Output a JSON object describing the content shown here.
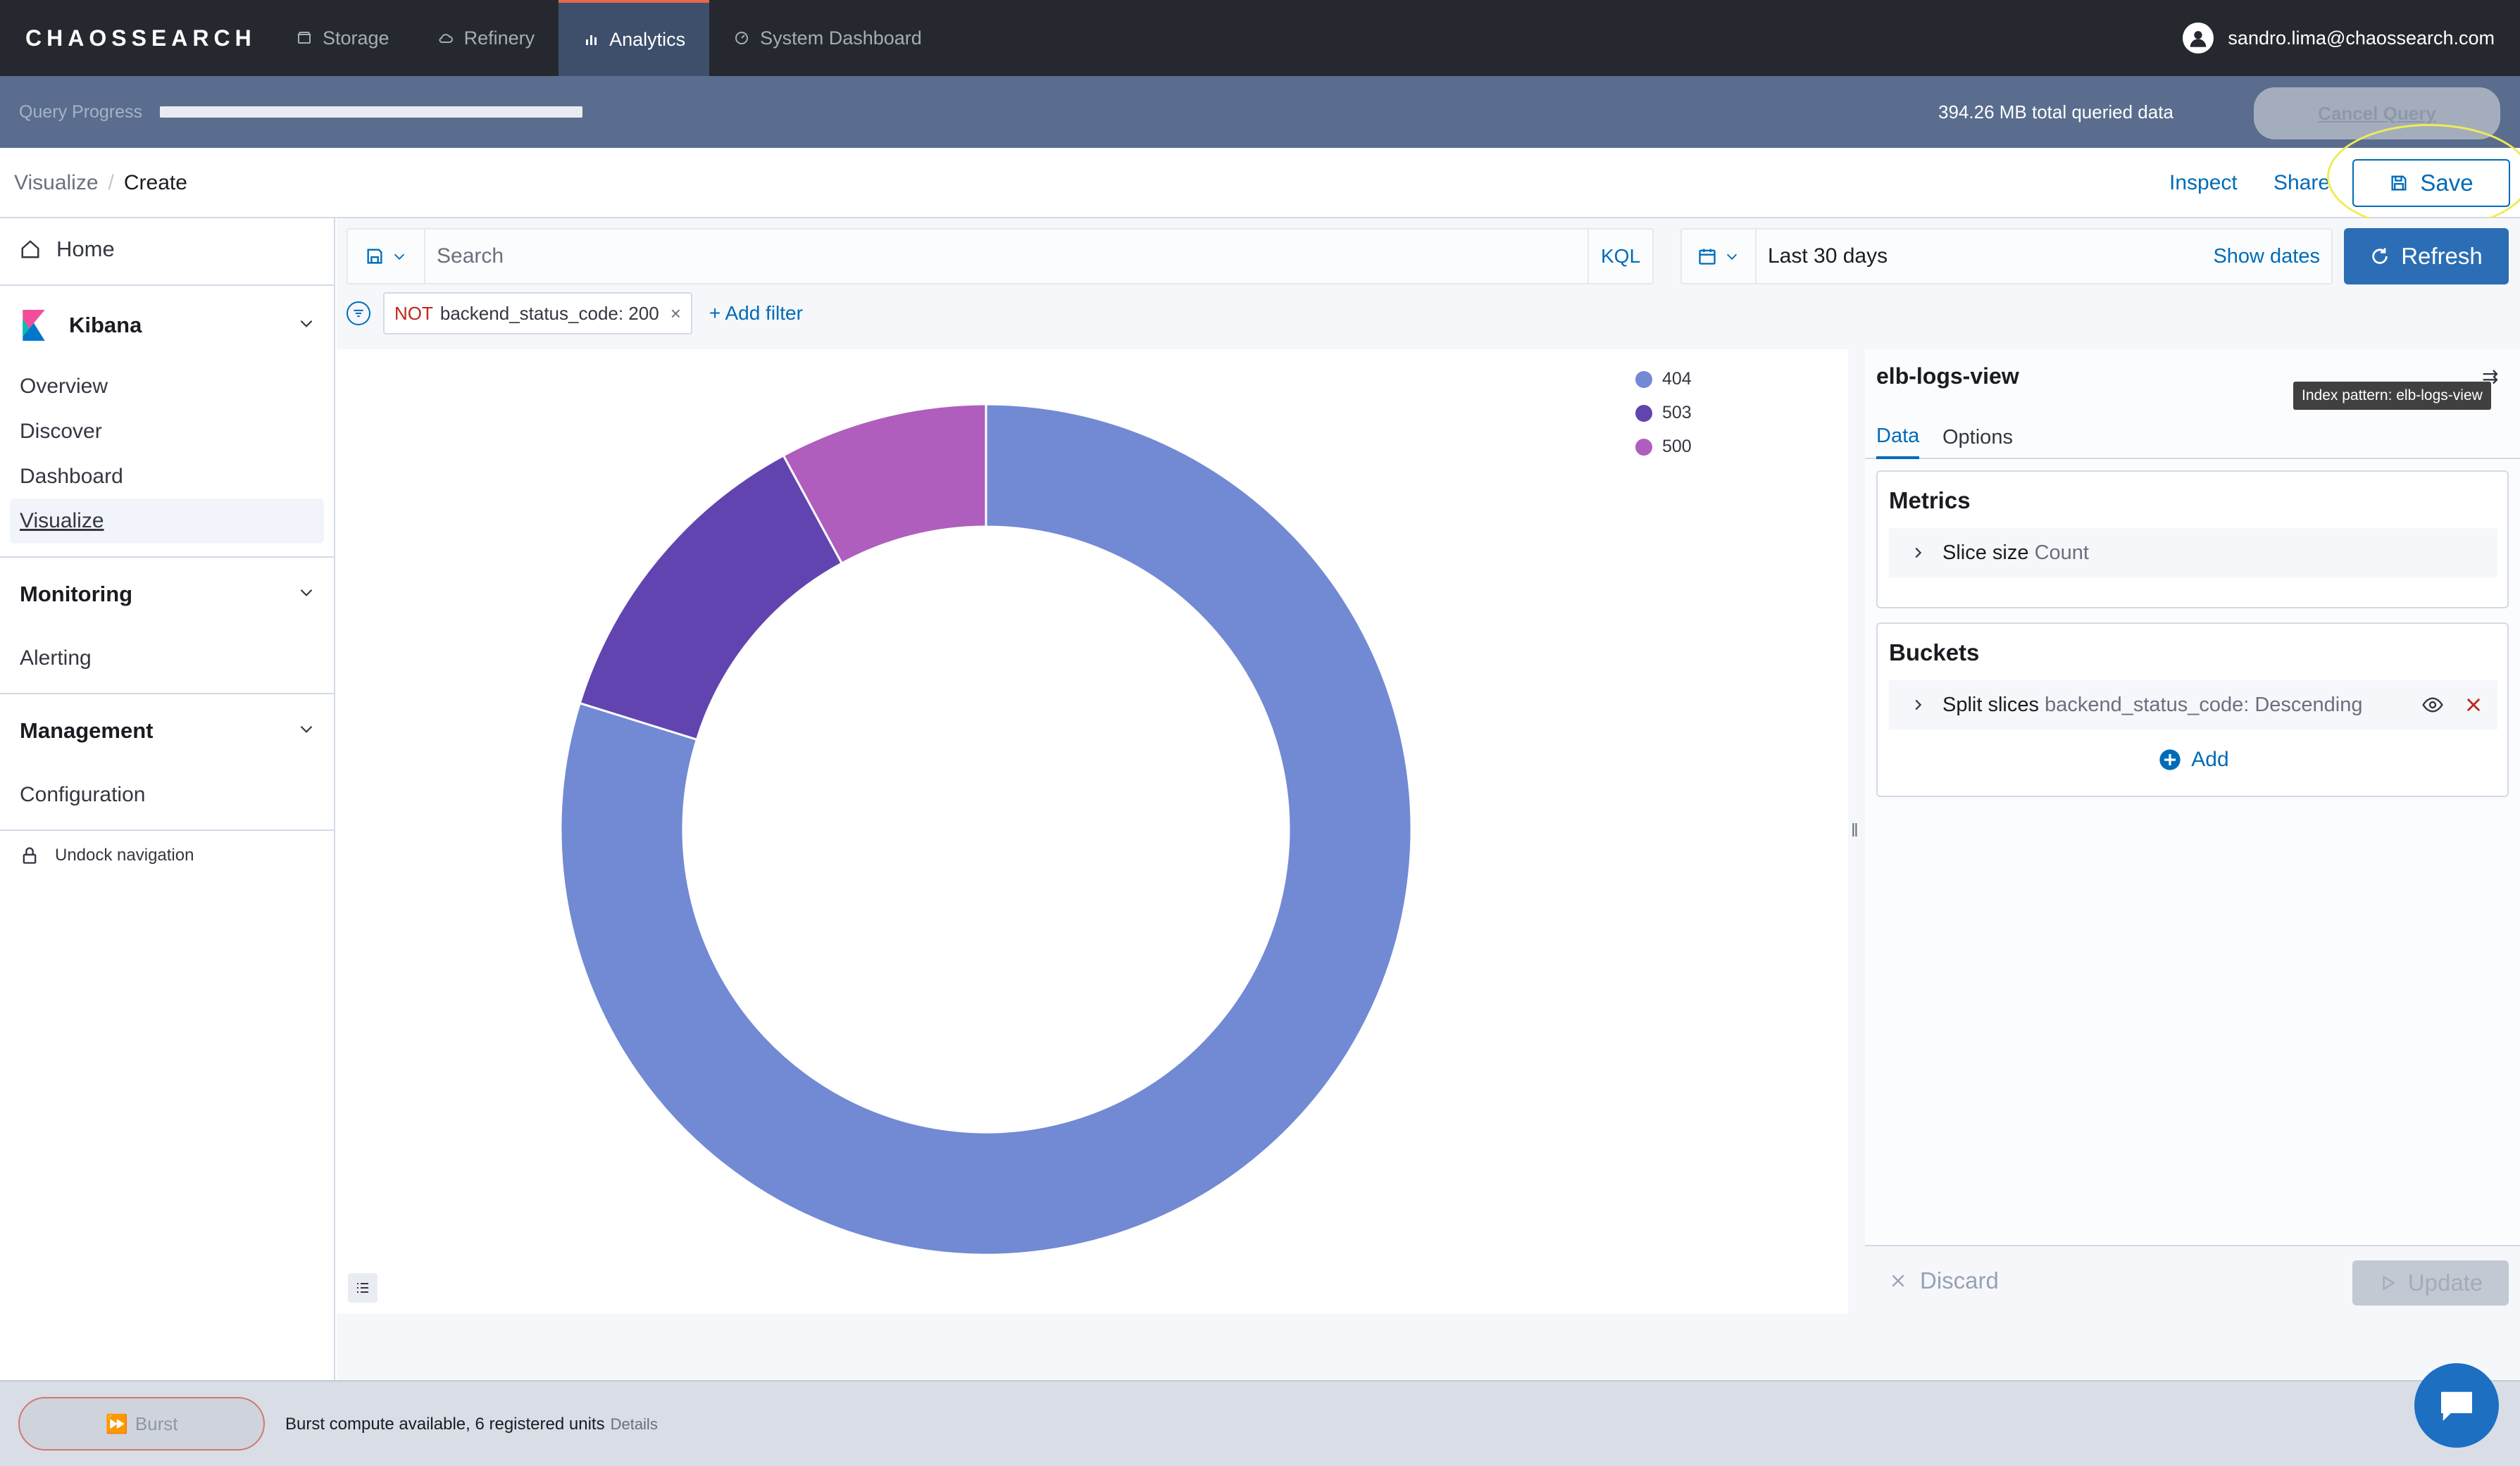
{
  "app": {
    "logo": "CHAOSSEARCH",
    "nav_tabs": [
      {
        "label": "Storage",
        "icon": "storage-icon"
      },
      {
        "label": "Refinery",
        "icon": "cloud-icon"
      },
      {
        "label": "Analytics",
        "icon": "bar-chart-icon",
        "active": true
      },
      {
        "label": "System Dashboard",
        "icon": "dashboard-icon"
      }
    ],
    "user_email": "sandro.lima@chaossearch.com"
  },
  "query": {
    "label": "Query Progress",
    "progress": 1.0,
    "data_summary": "394.26 MB total queried data",
    "cancel_label": "Cancel Query"
  },
  "breadcrumb": {
    "parent": "Visualize",
    "current": "Create"
  },
  "actions": {
    "inspect": "Inspect",
    "share": "Share",
    "save": "Save"
  },
  "sidebar": {
    "home": "Home",
    "kibana": {
      "title": "Kibana",
      "items": [
        "Overview",
        "Discover",
        "Dashboard",
        "Visualize"
      ],
      "selected": "Visualize"
    },
    "monitoring": {
      "title": "Monitoring",
      "items": [
        "Alerting"
      ]
    },
    "management": {
      "title": "Management",
      "items": [
        "Configuration"
      ]
    },
    "undock": "Undock navigation"
  },
  "search": {
    "placeholder": "Search",
    "language": "KQL"
  },
  "date": {
    "range": "Last 30 days",
    "show_dates": "Show dates",
    "refresh": "Refresh"
  },
  "filters": {
    "pills": [
      {
        "negate": "NOT",
        "text": "backend_status_code: 200"
      }
    ],
    "add_label": "+ Add filter"
  },
  "chart_data": {
    "type": "pie",
    "donut": true,
    "labels": [
      "404",
      "503",
      "500"
    ],
    "values": [
      79.8,
      12.3,
      7.9
    ],
    "colors": [
      "#7289d4",
      "#6244b0",
      "#b05ebd"
    ],
    "legend_position": "top-right"
  },
  "editor": {
    "index_title": "elb-logs-view",
    "tooltip": "Index pattern: elb-logs-view",
    "tabs": [
      "Data",
      "Options"
    ],
    "active_tab": "Data",
    "metrics": {
      "title": "Metrics",
      "row_label": "Slice size",
      "row_value": "Count"
    },
    "buckets": {
      "title": "Buckets",
      "row_label": "Split slices",
      "row_value": "backend_status_code: Descending",
      "add_label": "Add"
    },
    "discard": "Discard",
    "update": "Update"
  },
  "bottom": {
    "burst_label": "Burst",
    "status": "Burst compute available, 6 registered units",
    "details": "Details"
  }
}
